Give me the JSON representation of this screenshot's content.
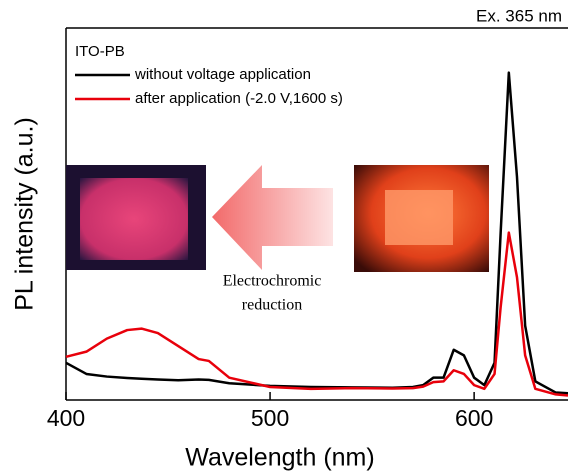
{
  "chart_data": {
    "type": "line",
    "title": "Ex. 365 nm",
    "legend_title": "ITO-PB",
    "x_label": "Wavelength (nm)",
    "y_label": "PL intensity (a.u.)",
    "annotation": [
      "Electrochromic",
      "reduction"
    ],
    "x": [
      400,
      410,
      420,
      430,
      437,
      445,
      455,
      465,
      470,
      480,
      500,
      520,
      540,
      560,
      570,
      575,
      580,
      585,
      590,
      595,
      600,
      605,
      610,
      613,
      617,
      621,
      625,
      630,
      640,
      646
    ],
    "series": [
      {
        "name": "without voltage application",
        "color": "#000000",
        "values": [
          10,
          7,
          6.3,
          5.9,
          5.7,
          5.5,
          5.3,
          5.5,
          5.4,
          4.5,
          3.8,
          3.5,
          3.4,
          3.3,
          3.5,
          4,
          6,
          6,
          13.5,
          12,
          6,
          4,
          10,
          45,
          88,
          60,
          20,
          5,
          2,
          1.8
        ]
      },
      {
        "name": "after application (-2.0 V,1600 s)",
        "color": "#e8000b",
        "values": [
          11.6,
          13,
          16.5,
          18.8,
          19.2,
          18,
          14.5,
          11,
          10.5,
          6,
          3.5,
          3,
          3.2,
          3.1,
          3.2,
          3.6,
          4.8,
          5,
          8,
          7,
          4,
          3,
          7,
          25,
          45,
          33,
          12,
          3,
          1.5,
          1.2
        ]
      }
    ],
    "xlim": [
      400,
      646
    ],
    "xticks": [
      400,
      500,
      600
    ],
    "ylim": [
      0,
      100
    ]
  }
}
